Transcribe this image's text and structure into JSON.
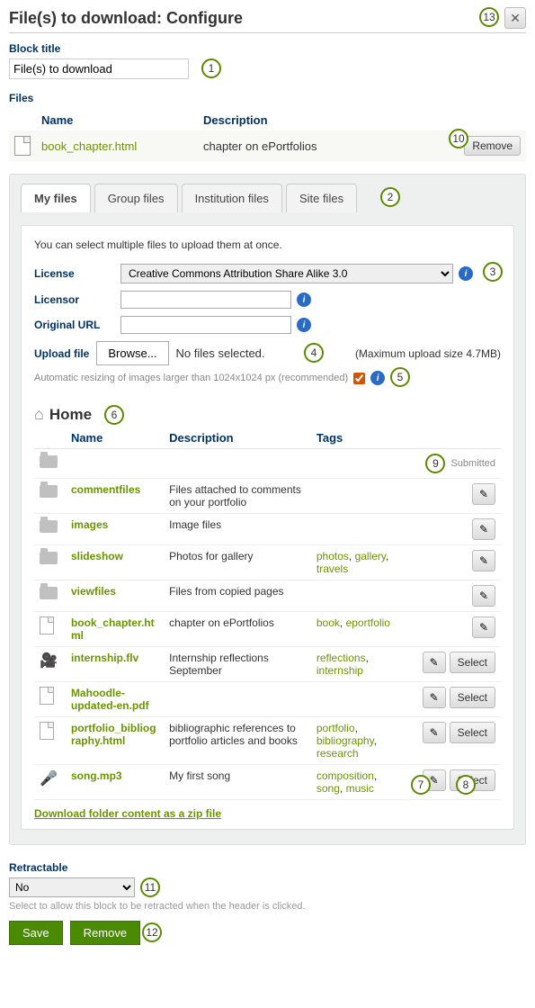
{
  "header": {
    "title": "File(s) to download: Configure"
  },
  "block_title": {
    "label": "Block title",
    "value": "File(s) to download"
  },
  "files_section": {
    "label": "Files",
    "columns": {
      "name": "Name",
      "description": "Description"
    },
    "file": {
      "name": "book_chapter.html",
      "description": "chapter on ePortfolios"
    },
    "remove_label": "Remove"
  },
  "tabs": {
    "my_files": "My files",
    "group_files": "Group files",
    "institution_files": "Institution files",
    "site_files": "Site files"
  },
  "upload_panel": {
    "helptext": "You can select multiple files to upload them at once.",
    "license_label": "License",
    "license_value": "Creative Commons Attribution Share Alike 3.0",
    "licensor_label": "Licensor",
    "licensor_value": "",
    "original_url_label": "Original URL",
    "original_url_value": "",
    "upload_label": "Upload file",
    "browse_label": "Browse...",
    "no_files": "No files selected.",
    "max_size": "(Maximum upload size 4.7MB)",
    "resize_label": "Automatic resizing of images larger than 1024x1024 px (recommended)"
  },
  "home": {
    "title": "Home",
    "columns": {
      "name": "Name",
      "description": "Description",
      "tags": "Tags"
    },
    "submitted_label": "Submitted",
    "rows": [
      {
        "type": "folder",
        "name": "",
        "description": "",
        "tags": [],
        "submitted": true,
        "selectable": false,
        "editable": false
      },
      {
        "type": "folder",
        "name": "commentfiles",
        "description": "Files attached to comments on your portfolio",
        "tags": [],
        "selectable": false,
        "editable": true
      },
      {
        "type": "folder",
        "name": "images",
        "description": "Image files",
        "tags": [],
        "selectable": false,
        "editable": true
      },
      {
        "type": "folder",
        "name": "slideshow",
        "description": "Photos for gallery",
        "tags": [
          "photos",
          "gallery",
          "travels"
        ],
        "selectable": false,
        "editable": true
      },
      {
        "type": "folder",
        "name": "viewfiles",
        "description": "Files from copied pages",
        "tags": [],
        "selectable": false,
        "editable": true
      },
      {
        "type": "file",
        "name": "book_chapter.html",
        "description": "chapter on ePortfolios",
        "tags": [
          "book",
          "eportfolio"
        ],
        "selectable": false,
        "editable": true
      },
      {
        "type": "video",
        "name": "internship.flv",
        "description": "Internship reflections September",
        "tags": [
          "reflections",
          "internship"
        ],
        "selectable": true,
        "editable": true
      },
      {
        "type": "file",
        "name": "Mahoodle-updated-en.pdf",
        "description": "",
        "tags": [],
        "selectable": true,
        "editable": true
      },
      {
        "type": "file",
        "name": "portfolio_bibliography.html",
        "description": "bibliographic references to portfolio articles and books",
        "tags": [
          "portfolio",
          "bibliography",
          "research"
        ],
        "selectable": true,
        "editable": true
      },
      {
        "type": "audio",
        "name": "song.mp3",
        "description": "My first song",
        "tags": [
          "composition",
          "song",
          "music"
        ],
        "selectable": true,
        "editable": true
      }
    ],
    "zip_link": "Download folder content as a zip file",
    "select_label": "Select"
  },
  "retractable": {
    "label": "Retractable",
    "value": "No",
    "help": "Select to allow this block to be retracted when the header is clicked."
  },
  "buttons": {
    "save": "Save",
    "remove": "Remove"
  },
  "callouts": [
    "1",
    "2",
    "3",
    "4",
    "5",
    "6",
    "7",
    "8",
    "9",
    "10",
    "11",
    "12",
    "13"
  ]
}
